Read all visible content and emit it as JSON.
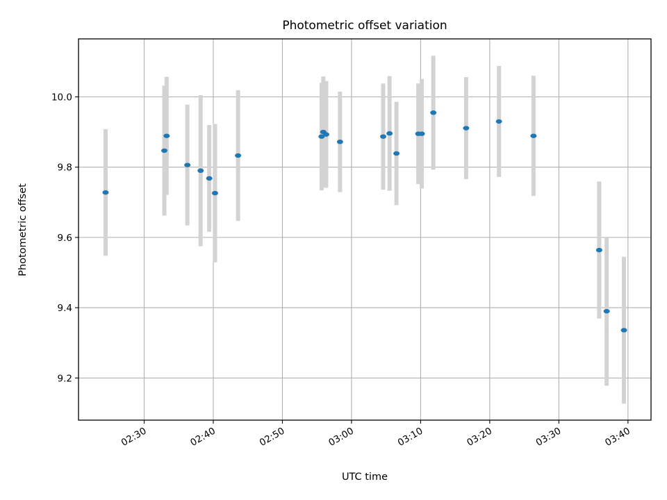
{
  "chart_data": {
    "type": "scatter",
    "title": "Photometric offset variation",
    "xlabel": "UTC time",
    "ylabel": "Photometric offset",
    "xlim": [
      "02:20:30",
      "03:43:20"
    ],
    "ylim": [
      9.08,
      10.165
    ],
    "grid": true,
    "x_ticks": [
      "02:30",
      "02:40",
      "02:50",
      "03:00",
      "03:10",
      "03:20",
      "03:30",
      "03:40"
    ],
    "y_ticks": [
      "9.2",
      "9.4",
      "9.6",
      "9.8",
      "10.0"
    ],
    "colors": {
      "point": "#1f77b4",
      "errorbar": "#d3d3d3",
      "grid": "#b0b0b0"
    },
    "series": [
      {
        "points": [
          {
            "x": "02:24:25",
            "y": 9.728,
            "yerr": 0.18
          },
          {
            "x": "02:32:55",
            "y": 9.847,
            "yerr": 0.185
          },
          {
            "x": "02:33:15",
            "y": 9.889,
            "yerr": 0.168
          },
          {
            "x": "02:36:15",
            "y": 9.806,
            "yerr": 0.172
          },
          {
            "x": "02:38:10",
            "y": 9.79,
            "yerr": 0.215
          },
          {
            "x": "02:39:25",
            "y": 9.768,
            "yerr": 0.152
          },
          {
            "x": "02:40:15",
            "y": 9.726,
            "yerr": 0.197
          },
          {
            "x": "02:43:35",
            "y": 9.833,
            "yerr": 0.186
          },
          {
            "x": "02:55:40",
            "y": 9.887,
            "yerr": 0.153
          },
          {
            "x": "02:55:55",
            "y": 9.9,
            "yerr": 0.158
          },
          {
            "x": "02:56:20",
            "y": 9.893,
            "yerr": 0.152
          },
          {
            "x": "02:58:20",
            "y": 9.872,
            "yerr": 0.143
          },
          {
            "x": "03:04:35",
            "y": 9.887,
            "yerr": 0.151
          },
          {
            "x": "03:05:30",
            "y": 9.896,
            "yerr": 0.163
          },
          {
            "x": "03:06:30",
            "y": 9.839,
            "yerr": 0.147
          },
          {
            "x": "03:09:40",
            "y": 9.895,
            "yerr": 0.143
          },
          {
            "x": "03:10:10",
            "y": 9.895,
            "yerr": 0.156
          },
          {
            "x": "03:11:50",
            "y": 9.955,
            "yerr": 0.162
          },
          {
            "x": "03:16:35",
            "y": 9.911,
            "yerr": 0.145
          },
          {
            "x": "03:21:20",
            "y": 9.93,
            "yerr": 0.158
          },
          {
            "x": "03:26:20",
            "y": 9.889,
            "yerr": 0.171
          },
          {
            "x": "03:35:50",
            "y": 9.564,
            "yerr": 0.195
          },
          {
            "x": "03:36:55",
            "y": 9.39,
            "yerr": 0.212
          },
          {
            "x": "03:39:25",
            "y": 9.336,
            "yerr": 0.209
          }
        ]
      }
    ]
  }
}
